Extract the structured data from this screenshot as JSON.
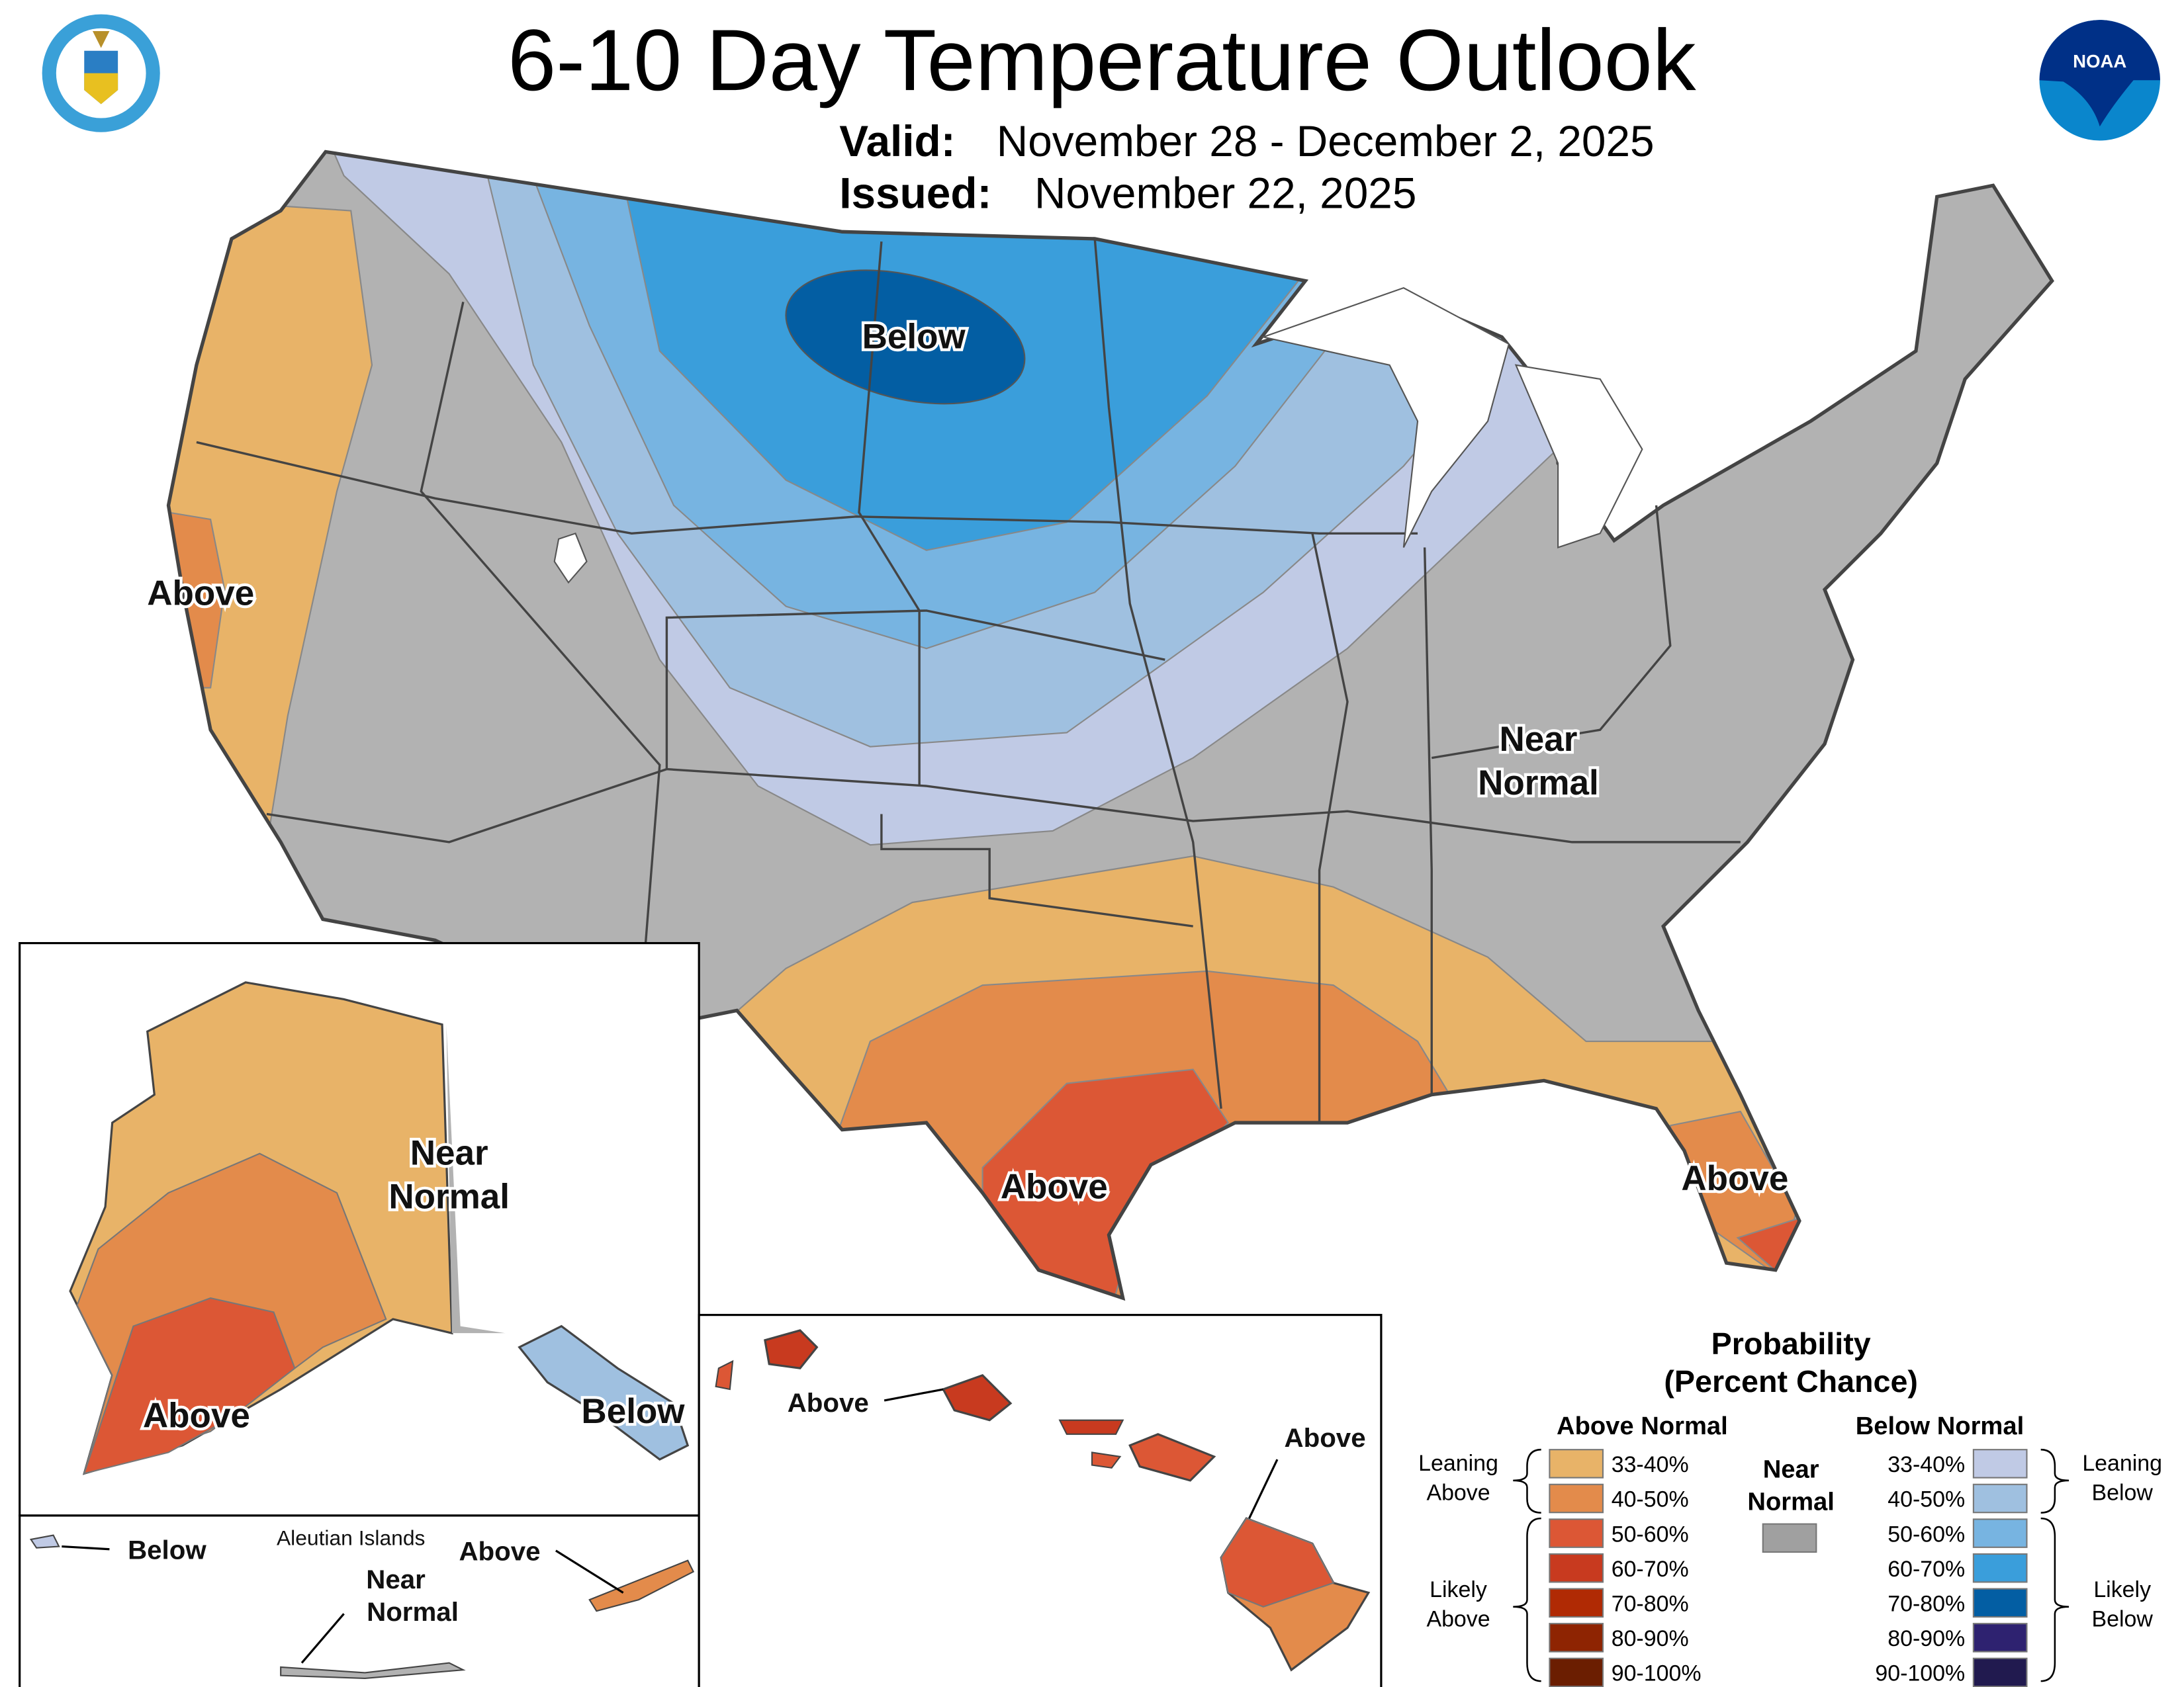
{
  "header": {
    "title": "6-10 Day Temperature Outlook",
    "valid_label": "Valid:",
    "valid_value": "November 28 - December 2, 2025",
    "issued_label": "Issued:",
    "issued_value": "November 22, 2025",
    "left_logo": "Department of Commerce seal - DEPARTMENT OF COMMERCE - UNITED STATES OF AMERICA",
    "right_logo": "NOAA"
  },
  "colors": {
    "near_normal": "#b2b2b2",
    "water": "#ffffff",
    "state_border": "#444444"
  },
  "map_labels": {
    "conus": {
      "below_north": "Below",
      "above_west": "Above",
      "near_normal_line1": "Near",
      "near_normal_line2": "Normal",
      "above_texas": "Above",
      "above_florida": "Above"
    },
    "alaska": {
      "near_normal_line1": "Near",
      "near_normal_line2": "Normal",
      "above": "Above",
      "below": "Below"
    },
    "aleutians": {
      "title": "Aleutian Islands",
      "below": "Below",
      "near_normal_line1": "Near",
      "near_normal_line2": "Normal",
      "above": "Above"
    },
    "hawaii": {
      "above_oahu": "Above",
      "above_big_island": "Above"
    }
  },
  "legend": {
    "title_line1": "Probability",
    "title_line2": "(Percent Chance)",
    "above_header": "Above Normal",
    "below_header": "Below Normal",
    "near_line1": "Near",
    "near_line2": "Normal",
    "near_color": "#a0a0a0",
    "leaning_above_line1": "Leaning",
    "leaning_above_line2": "Above",
    "likely_above_line1": "Likely",
    "likely_above_line2": "Above",
    "leaning_below_line1": "Leaning",
    "leaning_below_line2": "Below",
    "likely_below_line1": "Likely",
    "likely_below_line2": "Below",
    "above": [
      {
        "range": "33-40%",
        "color": "#e8b368"
      },
      {
        "range": "40-50%",
        "color": "#e38b4b"
      },
      {
        "range": "50-60%",
        "color": "#dc5735"
      },
      {
        "range": "60-70%",
        "color": "#c83a1f"
      },
      {
        "range": "70-80%",
        "color": "#b02a04"
      },
      {
        "range": "80-90%",
        "color": "#8e2402"
      },
      {
        "range": "90-100%",
        "color": "#6b1e01"
      }
    ],
    "below": [
      {
        "range": "33-40%",
        "color": "#c0cae5"
      },
      {
        "range": "40-50%",
        "color": "#9fc0e0"
      },
      {
        "range": "50-60%",
        "color": "#77b4e1"
      },
      {
        "range": "60-70%",
        "color": "#3a9edb"
      },
      {
        "range": "70-80%",
        "color": "#035ea3"
      },
      {
        "range": "80-90%",
        "color": "#2e2270"
      },
      {
        "range": "90-100%",
        "color": "#211a4f"
      }
    ]
  }
}
